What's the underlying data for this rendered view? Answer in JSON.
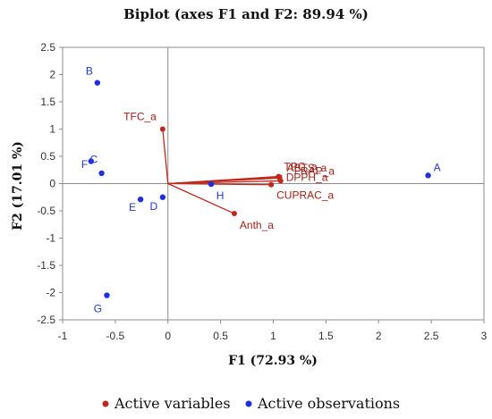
{
  "chart_data": {
    "type": "scatter",
    "title": "Biplot (axes F1 and F2: 89.94 %)",
    "xlabel": "F1 (72.93 %)",
    "ylabel": "F2 (17.01 %)",
    "xlim": [
      -1,
      3
    ],
    "ylim": [
      -2.5,
      2.5
    ],
    "x_ticks": [
      -1,
      -0.5,
      0,
      0.5,
      1,
      1.5,
      2,
      2.5,
      3
    ],
    "x_tick_labels": [
      "-1",
      "-0.5",
      "0",
      "0.5",
      "1",
      "1.5",
      "2",
      "2.5",
      "3"
    ],
    "y_ticks": [
      -2.5,
      -2,
      -1.5,
      -1,
      -0.5,
      0,
      0.5,
      1,
      1.5,
      2,
      2.5
    ],
    "y_tick_labels": [
      "-2.5",
      "-2",
      "-1.5",
      "-1",
      "-0.5",
      "0",
      "0.5",
      "1",
      "1.5",
      "2",
      "2.5"
    ],
    "grid": false,
    "legend_position": "bottom",
    "series": [
      {
        "name": "Active variables",
        "color": "#c0281c",
        "label_color": "#a0231a",
        "render": "vector",
        "points": [
          {
            "label": "TFC_a",
            "x": -0.05,
            "y": 1.0
          },
          {
            "label": "TPC_a",
            "x": 1.05,
            "y": 0.13
          },
          {
            "label": "ABTS_a",
            "x": 1.06,
            "y": 0.12
          },
          {
            "label": "FRAP_a",
            "x": 1.06,
            "y": 0.1
          },
          {
            "label": "DPPH_a",
            "x": 1.07,
            "y": 0.05
          },
          {
            "label": "CUPRAC_a",
            "x": 0.98,
            "y": -0.02
          },
          {
            "label": "Anth_a",
            "x": 0.63,
            "y": -0.55
          }
        ]
      },
      {
        "name": "Active observations",
        "color": "#1f2fe0",
        "label_color": "#1f3ccc",
        "render": "point",
        "points": [
          {
            "label": "A",
            "x": 2.47,
            "y": 0.15
          },
          {
            "label": "B",
            "x": -0.67,
            "y": 1.85
          },
          {
            "label": "C",
            "x": -0.73,
            "y": 0.41
          },
          {
            "label": "F",
            "x": -0.63,
            "y": 0.19
          },
          {
            "label": "D",
            "x": -0.05,
            "y": -0.25
          },
          {
            "label": "E",
            "x": -0.26,
            "y": -0.29
          },
          {
            "label": "G",
            "x": -0.58,
            "y": -2.05
          },
          {
            "label": "H",
            "x": 0.41,
            "y": -0.01
          }
        ]
      }
    ]
  }
}
